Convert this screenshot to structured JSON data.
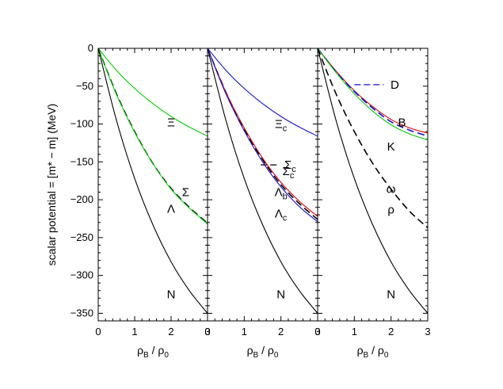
{
  "chart_data": [
    {
      "type": "line",
      "ylabel": "scalar potential = [m* − m] (MeV)",
      "xlabel": "ρ_B / ρ_0",
      "xlim": [
        0,
        3
      ],
      "ylim": [
        -360,
        0
      ],
      "xticks": [
        "0",
        "1",
        "2",
        "3"
      ],
      "yticks": [
        "0",
        "−50",
        "−100",
        "−150",
        "−200",
        "−250",
        "−300",
        "−350"
      ],
      "series": [
        {
          "name": "Ξ",
          "color": "#00d000",
          "dash": "solid",
          "x": [
            0,
            0.5,
            1,
            1.5,
            2,
            2.5,
            3
          ],
          "values": [
            0,
            -29,
            -53,
            -73,
            -90,
            -104,
            -116
          ]
        },
        {
          "name": "Λ",
          "color": "#000000",
          "dash": "dashed",
          "x": [
            0,
            0.5,
            1,
            1.5,
            2,
            2.5,
            3
          ],
          "values": [
            0,
            -60,
            -110,
            -152,
            -185,
            -210,
            -231
          ]
        },
        {
          "name": "Σ",
          "color": "#00d000",
          "dash": "solid",
          "x": [
            0,
            0.5,
            1,
            1.5,
            2,
            2.5,
            3
          ],
          "values": [
            0,
            -61,
            -111,
            -152,
            -186,
            -211,
            -232
          ]
        },
        {
          "name": "N",
          "color": "#000000",
          "dash": "solid",
          "x": [
            0,
            0.5,
            1,
            1.5,
            2,
            2.5,
            3
          ],
          "values": [
            0,
            -95,
            -172,
            -233,
            -282,
            -320,
            -350
          ]
        }
      ],
      "labels": [
        {
          "text": "Ξ",
          "x": 2,
          "y": -98
        },
        {
          "text": "Σ",
          "x": 2.4,
          "y": -190
        },
        {
          "text": "Λ",
          "x": 2,
          "y": -212
        },
        {
          "text": "N",
          "x": 2,
          "y": -325
        }
      ]
    },
    {
      "type": "line",
      "xlabel": "ρ_B / ρ_0",
      "xlim": [
        0,
        3
      ],
      "ylim": [
        -360,
        0
      ],
      "xticks": [
        "0",
        "1",
        "2",
        "3"
      ],
      "series": [
        {
          "name": "Ξ_c",
          "color": "#1010e0",
          "dash": "solid",
          "x": [
            0,
            0.5,
            1,
            1.5,
            2,
            2.5,
            3
          ],
          "values": [
            0,
            -29,
            -53,
            -73,
            -90,
            -104,
            -116
          ]
        },
        {
          "name": "Σ_c",
          "color": "#000000",
          "dash": "dashed",
          "x": [
            0,
            0.5,
            1,
            1.5,
            2,
            2.5,
            3
          ],
          "values": [
            0,
            -58,
            -107,
            -147,
            -180,
            -205,
            -226
          ]
        },
        {
          "name": "Λ_b",
          "color": "#e00000",
          "dash": "solid",
          "x": [
            0,
            0.5,
            1,
            1.5,
            2,
            2.5,
            3
          ],
          "values": [
            0,
            -58,
            -105,
            -145,
            -177,
            -202,
            -222
          ]
        },
        {
          "name": "Λ_c",
          "color": "#1010e0",
          "dash": "solid",
          "x": [
            0,
            0.5,
            1,
            1.5,
            2,
            2.5,
            3
          ],
          "values": [
            0,
            -60,
            -109,
            -150,
            -183,
            -209,
            -229
          ]
        },
        {
          "name": "N",
          "color": "#000000",
          "dash": "solid",
          "x": [
            0,
            0.5,
            1,
            1.5,
            2,
            2.5,
            3
          ],
          "values": [
            0,
            -95,
            -172,
            -233,
            -282,
            -320,
            -350
          ]
        }
      ],
      "labels": [
        {
          "text": "Ξ",
          "sub": "c",
          "x": 2,
          "y": -100
        },
        {
          "text": "Σ",
          "sub": "c",
          "x": 2.2,
          "y": -162
        },
        {
          "text": "Λ",
          "sub": "b",
          "x": 2,
          "y": -190
        },
        {
          "text": "Λ",
          "sub": "c",
          "x": 2,
          "y": -218
        },
        {
          "text": "N",
          "x": 2,
          "y": -325
        }
      ],
      "legend": [
        {
          "label": "Σ",
          "sub": "c",
          "color": "#000000",
          "dash": "dashed",
          "x0": 1.45,
          "x1": 1.95,
          "y": -154
        }
      ]
    },
    {
      "type": "line",
      "xlabel": "ρ_B / ρ_0",
      "xlim": [
        0,
        3
      ],
      "ylim": [
        -360,
        0
      ],
      "xticks": [
        "0",
        "1",
        "2",
        "3"
      ],
      "series": [
        {
          "name": "B",
          "color": "#e00000",
          "dash": "solid",
          "x": [
            0,
            0.5,
            1,
            1.5,
            2,
            2.5,
            3
          ],
          "values": [
            0,
            -30,
            -56,
            -77,
            -94,
            -105,
            -112
          ]
        },
        {
          "name": "D",
          "color": "#1010e0",
          "dash": "dashed",
          "x": [
            0,
            0.5,
            1,
            1.5,
            2,
            2.5,
            3
          ],
          "values": [
            0,
            -31,
            -57,
            -79,
            -97,
            -108,
            -116
          ]
        },
        {
          "name": "K",
          "color": "#00d000",
          "dash": "solid",
          "x": [
            0,
            0.5,
            1,
            1.5,
            2,
            2.5,
            3
          ],
          "values": [
            0,
            -32,
            -60,
            -83,
            -101,
            -113,
            -121
          ]
        },
        {
          "name": "ω",
          "color": "#000000",
          "dash": "dashed",
          "x": [
            0,
            0.5,
            1,
            1.5,
            2,
            2.5,
            3
          ],
          "values": [
            0,
            -60,
            -110,
            -152,
            -186,
            -215,
            -237
          ]
        },
        {
          "name": "N",
          "color": "#000000",
          "dash": "solid",
          "x": [
            0,
            0.5,
            1,
            1.5,
            2,
            2.5,
            3
          ],
          "values": [
            0,
            -95,
            -172,
            -233,
            -282,
            -320,
            -350
          ]
        }
      ],
      "labels": [
        {
          "text": "B",
          "x": 2.3,
          "y": -98
        },
        {
          "text": "K",
          "x": 2,
          "y": -130
        },
        {
          "text": "ω",
          "x": 2,
          "y": -186
        },
        {
          "text": "ρ",
          "x": 2,
          "y": -213
        },
        {
          "text": "N",
          "x": 2,
          "y": -325
        }
      ],
      "legend": [
        {
          "label": "D",
          "color": "#1010e0",
          "dash": "dashed",
          "x0": 1.0,
          "x1": 1.8,
          "y": -48
        }
      ]
    }
  ]
}
